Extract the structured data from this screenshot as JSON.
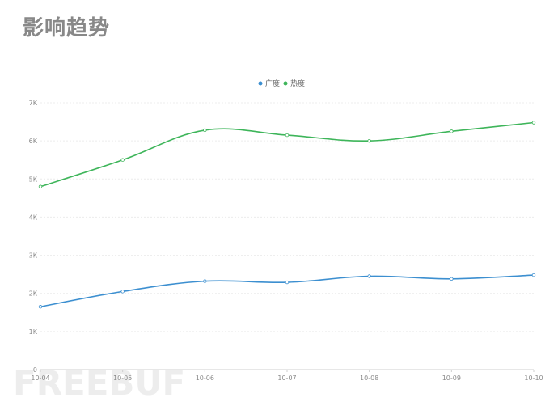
{
  "header": {
    "title": "影响趋势"
  },
  "watermark": "FREEBUF",
  "chart_data": {
    "type": "line",
    "smooth": true,
    "categories": [
      "10-04",
      "10-05",
      "10-06",
      "10-07",
      "10-08",
      "10-09",
      "10-10"
    ],
    "series": [
      {
        "name": "广度",
        "color": "#3c8fd0",
        "values": [
          1650,
          2050,
          2320,
          2290,
          2450,
          2380,
          2480
        ]
      },
      {
        "name": "热度",
        "color": "#3eb55a",
        "values": [
          4800,
          5500,
          6280,
          6150,
          6000,
          6250,
          6480
        ]
      }
    ],
    "ylim": [
      0,
      7000
    ],
    "yticks": [
      0,
      1000,
      2000,
      3000,
      4000,
      5000,
      6000,
      7000
    ],
    "ytick_labels": [
      "0",
      "1K",
      "2K",
      "3K",
      "4K",
      "5K",
      "6K",
      "7K"
    ],
    "grid": true,
    "legend_position": "top-center"
  }
}
